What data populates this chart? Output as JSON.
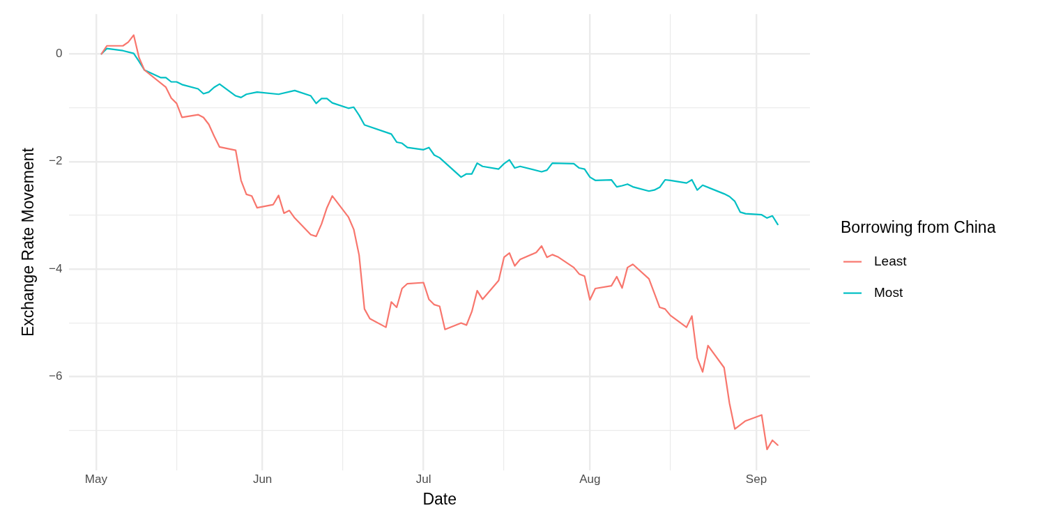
{
  "chart_data": {
    "type": "line",
    "xlabel": "Date",
    "ylabel": "Exchange Rate Movement",
    "legend_title": "Borrowing from China",
    "legend": "right",
    "grid": true,
    "marker": "none",
    "line_style": "solid",
    "xlim": [
      "--04-26",
      "--09-11"
    ],
    "ylim": [
      -7.74,
      0.74
    ],
    "xticks": [
      {
        "value": "--05-01",
        "label": "May"
      },
      {
        "value": "--05-16",
        "label": null
      },
      {
        "value": "--06-01",
        "label": "Jun"
      },
      {
        "value": "--06-16",
        "label": null
      },
      {
        "value": "--07-01",
        "label": "Jul"
      },
      {
        "value": "--07-16",
        "label": null
      },
      {
        "value": "--08-01",
        "label": "Aug"
      },
      {
        "value": "--08-16",
        "label": null
      },
      {
        "value": "--09-01",
        "label": "Sep"
      }
    ],
    "yticks": [
      {
        "value": -7,
        "label": null
      },
      {
        "value": -6,
        "label": "−6"
      },
      {
        "value": -5,
        "label": null
      },
      {
        "value": -4,
        "label": "−4"
      },
      {
        "value": -3,
        "label": null
      },
      {
        "value": -2,
        "label": "−2"
      },
      {
        "value": -1,
        "label": null
      },
      0
    ],
    "series": [
      {
        "name": "Least",
        "color": "#f8766d",
        "x": [
          "--05-02",
          "--05-03",
          "--05-06",
          "--05-07",
          "--05-08",
          "--05-09",
          "--05-10",
          "--05-14",
          "--05-15",
          "--05-16",
          "--05-17",
          "--05-20",
          "--05-21",
          "--05-22",
          "--05-23",
          "--05-24",
          "--05-27",
          "--05-28",
          "--05-29",
          "--05-30",
          "--05-31",
          "--06-03",
          "--06-04",
          "--06-05",
          "--06-06",
          "--06-07",
          "--06-10",
          "--06-11",
          "--06-12",
          "--06-13",
          "--06-14",
          "--06-17",
          "--06-18",
          "--06-19",
          "--06-20",
          "--06-21",
          "--06-24",
          "--06-25",
          "--06-26",
          "--06-27",
          "--06-28",
          "--07-01",
          "--07-02",
          "--07-03",
          "--07-04",
          "--07-05",
          "--07-08",
          "--07-09",
          "--07-10",
          "--07-11",
          "--07-12",
          "--07-15",
          "--07-16",
          "--07-17",
          "--07-18",
          "--07-19",
          "--07-22",
          "--07-23",
          "--07-24",
          "--07-25",
          "--07-26",
          "--07-29",
          "--07-30",
          "--07-31",
          "--08-01",
          "--08-02",
          "--08-05",
          "--08-06",
          "--08-07",
          "--08-08",
          "--08-09",
          "--08-12",
          "--08-14",
          "--08-15",
          "--08-16",
          "--08-19",
          "--08-20",
          "--08-21",
          "--08-22",
          "--08-23",
          "--08-26",
          "--08-27",
          "--08-28",
          "--08-30",
          "--09-02",
          "--09-03",
          "--09-04",
          "--09-05"
        ],
        "values": [
          0,
          0.15,
          0.15,
          0.22,
          0.35,
          -0.07,
          -0.3,
          -0.62,
          -0.82,
          -0.92,
          -1.18,
          -1.13,
          -1.18,
          -1.31,
          -1.53,
          -1.73,
          -1.79,
          -2.35,
          -2.61,
          -2.64,
          -2.86,
          -2.8,
          -2.63,
          -2.96,
          -2.91,
          -3.05,
          -3.36,
          -3.39,
          -3.16,
          -2.86,
          -2.64,
          -3.03,
          -3.26,
          -3.74,
          -4.74,
          -4.92,
          -5.08,
          -4.61,
          -4.71,
          -4.36,
          -4.27,
          -4.25,
          -4.56,
          -4.66,
          -4.69,
          -5.12,
          -5.0,
          -5.04,
          -4.79,
          -4.4,
          -4.56,
          -4.21,
          -3.78,
          -3.7,
          -3.94,
          -3.82,
          -3.69,
          -3.57,
          -3.78,
          -3.73,
          -3.77,
          -3.97,
          -4.09,
          -4.13,
          -4.57,
          -4.36,
          -4.31,
          -4.14,
          -4.35,
          -3.97,
          -3.91,
          -4.18,
          -4.71,
          -4.74,
          -4.86,
          -5.08,
          -4.87,
          -5.65,
          -5.91,
          -5.42,
          -5.83,
          -6.49,
          -6.97,
          -6.82,
          -6.71,
          -7.35,
          -7.18,
          -7.27
        ]
      },
      {
        "name": "Most",
        "color": "#00bfc4",
        "x": [
          "--05-02",
          "--05-03",
          "--05-06",
          "--05-08",
          "--05-09",
          "--05-10",
          "--05-13",
          "--05-14",
          "--05-15",
          "--05-16",
          "--05-17",
          "--05-20",
          "--05-21",
          "--05-22",
          "--05-23",
          "--05-24",
          "--05-27",
          "--05-28",
          "--05-29",
          "--05-31",
          "--06-04",
          "--06-07",
          "--06-10",
          "--06-11",
          "--06-12",
          "--06-13",
          "--06-14",
          "--06-17",
          "--06-18",
          "--06-19",
          "--06-20",
          "--06-25",
          "--06-26",
          "--06-27",
          "--06-28",
          "--07-01",
          "--07-02",
          "--07-03",
          "--07-04",
          "--07-08",
          "--07-09",
          "--07-10",
          "--07-11",
          "--07-12",
          "--07-15",
          "--07-16",
          "--07-17",
          "--07-18",
          "--07-19",
          "--07-23",
          "--07-24",
          "--07-25",
          "--07-29",
          "--07-30",
          "--07-31",
          "--08-01",
          "--08-02",
          "--08-05",
          "--08-06",
          "--08-07",
          "--08-08",
          "--08-09",
          "--08-12",
          "--08-13",
          "--08-14",
          "--08-15",
          "--08-16",
          "--08-19",
          "--08-20",
          "--08-21",
          "--08-22",
          "--08-26",
          "--08-27",
          "--08-28",
          "--08-29",
          "--08-30",
          "--09-02",
          "--09-03",
          "--09-04",
          "--09-05"
        ],
        "values": [
          0,
          0.1,
          0.06,
          0.01,
          -0.14,
          -0.3,
          -0.44,
          -0.44,
          -0.52,
          -0.52,
          -0.57,
          -0.65,
          -0.74,
          -0.71,
          -0.62,
          -0.56,
          -0.78,
          -0.81,
          -0.75,
          -0.71,
          -0.75,
          -0.68,
          -0.78,
          -0.92,
          -0.83,
          -0.83,
          -0.91,
          -1.01,
          -0.99,
          -1.14,
          -1.32,
          -1.49,
          -1.64,
          -1.66,
          -1.74,
          -1.78,
          -1.74,
          -1.88,
          -1.93,
          -2.29,
          -2.23,
          -2.23,
          -2.03,
          -2.09,
          -2.14,
          -2.04,
          -1.97,
          -2.12,
          -2.09,
          -2.19,
          -2.16,
          -2.03,
          -2.04,
          -2.12,
          -2.14,
          -2.29,
          -2.35,
          -2.34,
          -2.47,
          -2.45,
          -2.42,
          -2.47,
          -2.55,
          -2.53,
          -2.48,
          -2.34,
          -2.35,
          -2.4,
          -2.34,
          -2.53,
          -2.44,
          -2.6,
          -2.65,
          -2.74,
          -2.94,
          -2.97,
          -2.99,
          -3.05,
          -3.01,
          -3.17
        ]
      }
    ]
  }
}
